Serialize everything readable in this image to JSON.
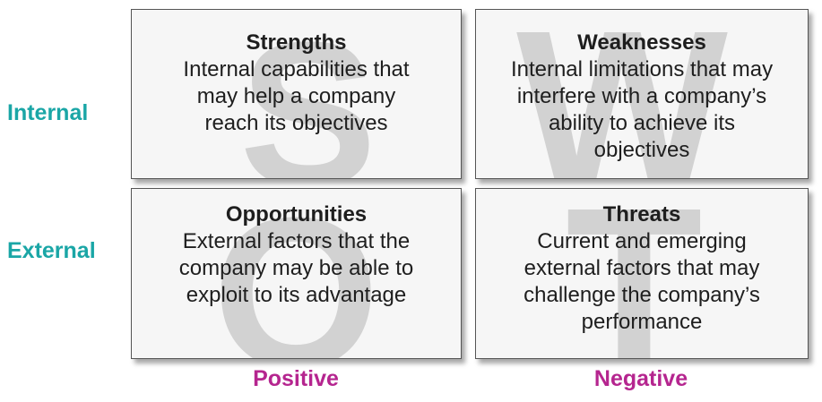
{
  "rows": {
    "internal": "Internal",
    "external": "External"
  },
  "columns": {
    "positive": "Positive",
    "negative": "Negative"
  },
  "quadrants": {
    "strengths": {
      "letter": "S",
      "title": "Strengths",
      "description": "Internal capabilities that\nmay help a company\nreach its objectives"
    },
    "weaknesses": {
      "letter": "W",
      "title": "Weaknesses",
      "description": "Internal limitations that may\ninterfere with a company’s\nability to achieve its\nobjectives"
    },
    "opportunities": {
      "letter": "O",
      "title": "Opportunities",
      "description": "External factors that the\ncompany may be able to\nexploit to its advantage"
    },
    "threats": {
      "letter": "T",
      "title": "Threats",
      "description": "Current and emerging\nexternal factors that may\nchallenge the company’s\nperformance"
    }
  },
  "colors": {
    "row_label": "#1aa6a6",
    "column_label": "#b5258f",
    "watermark": "#d2d2d2",
    "box_background": "#f6f6f6"
  }
}
